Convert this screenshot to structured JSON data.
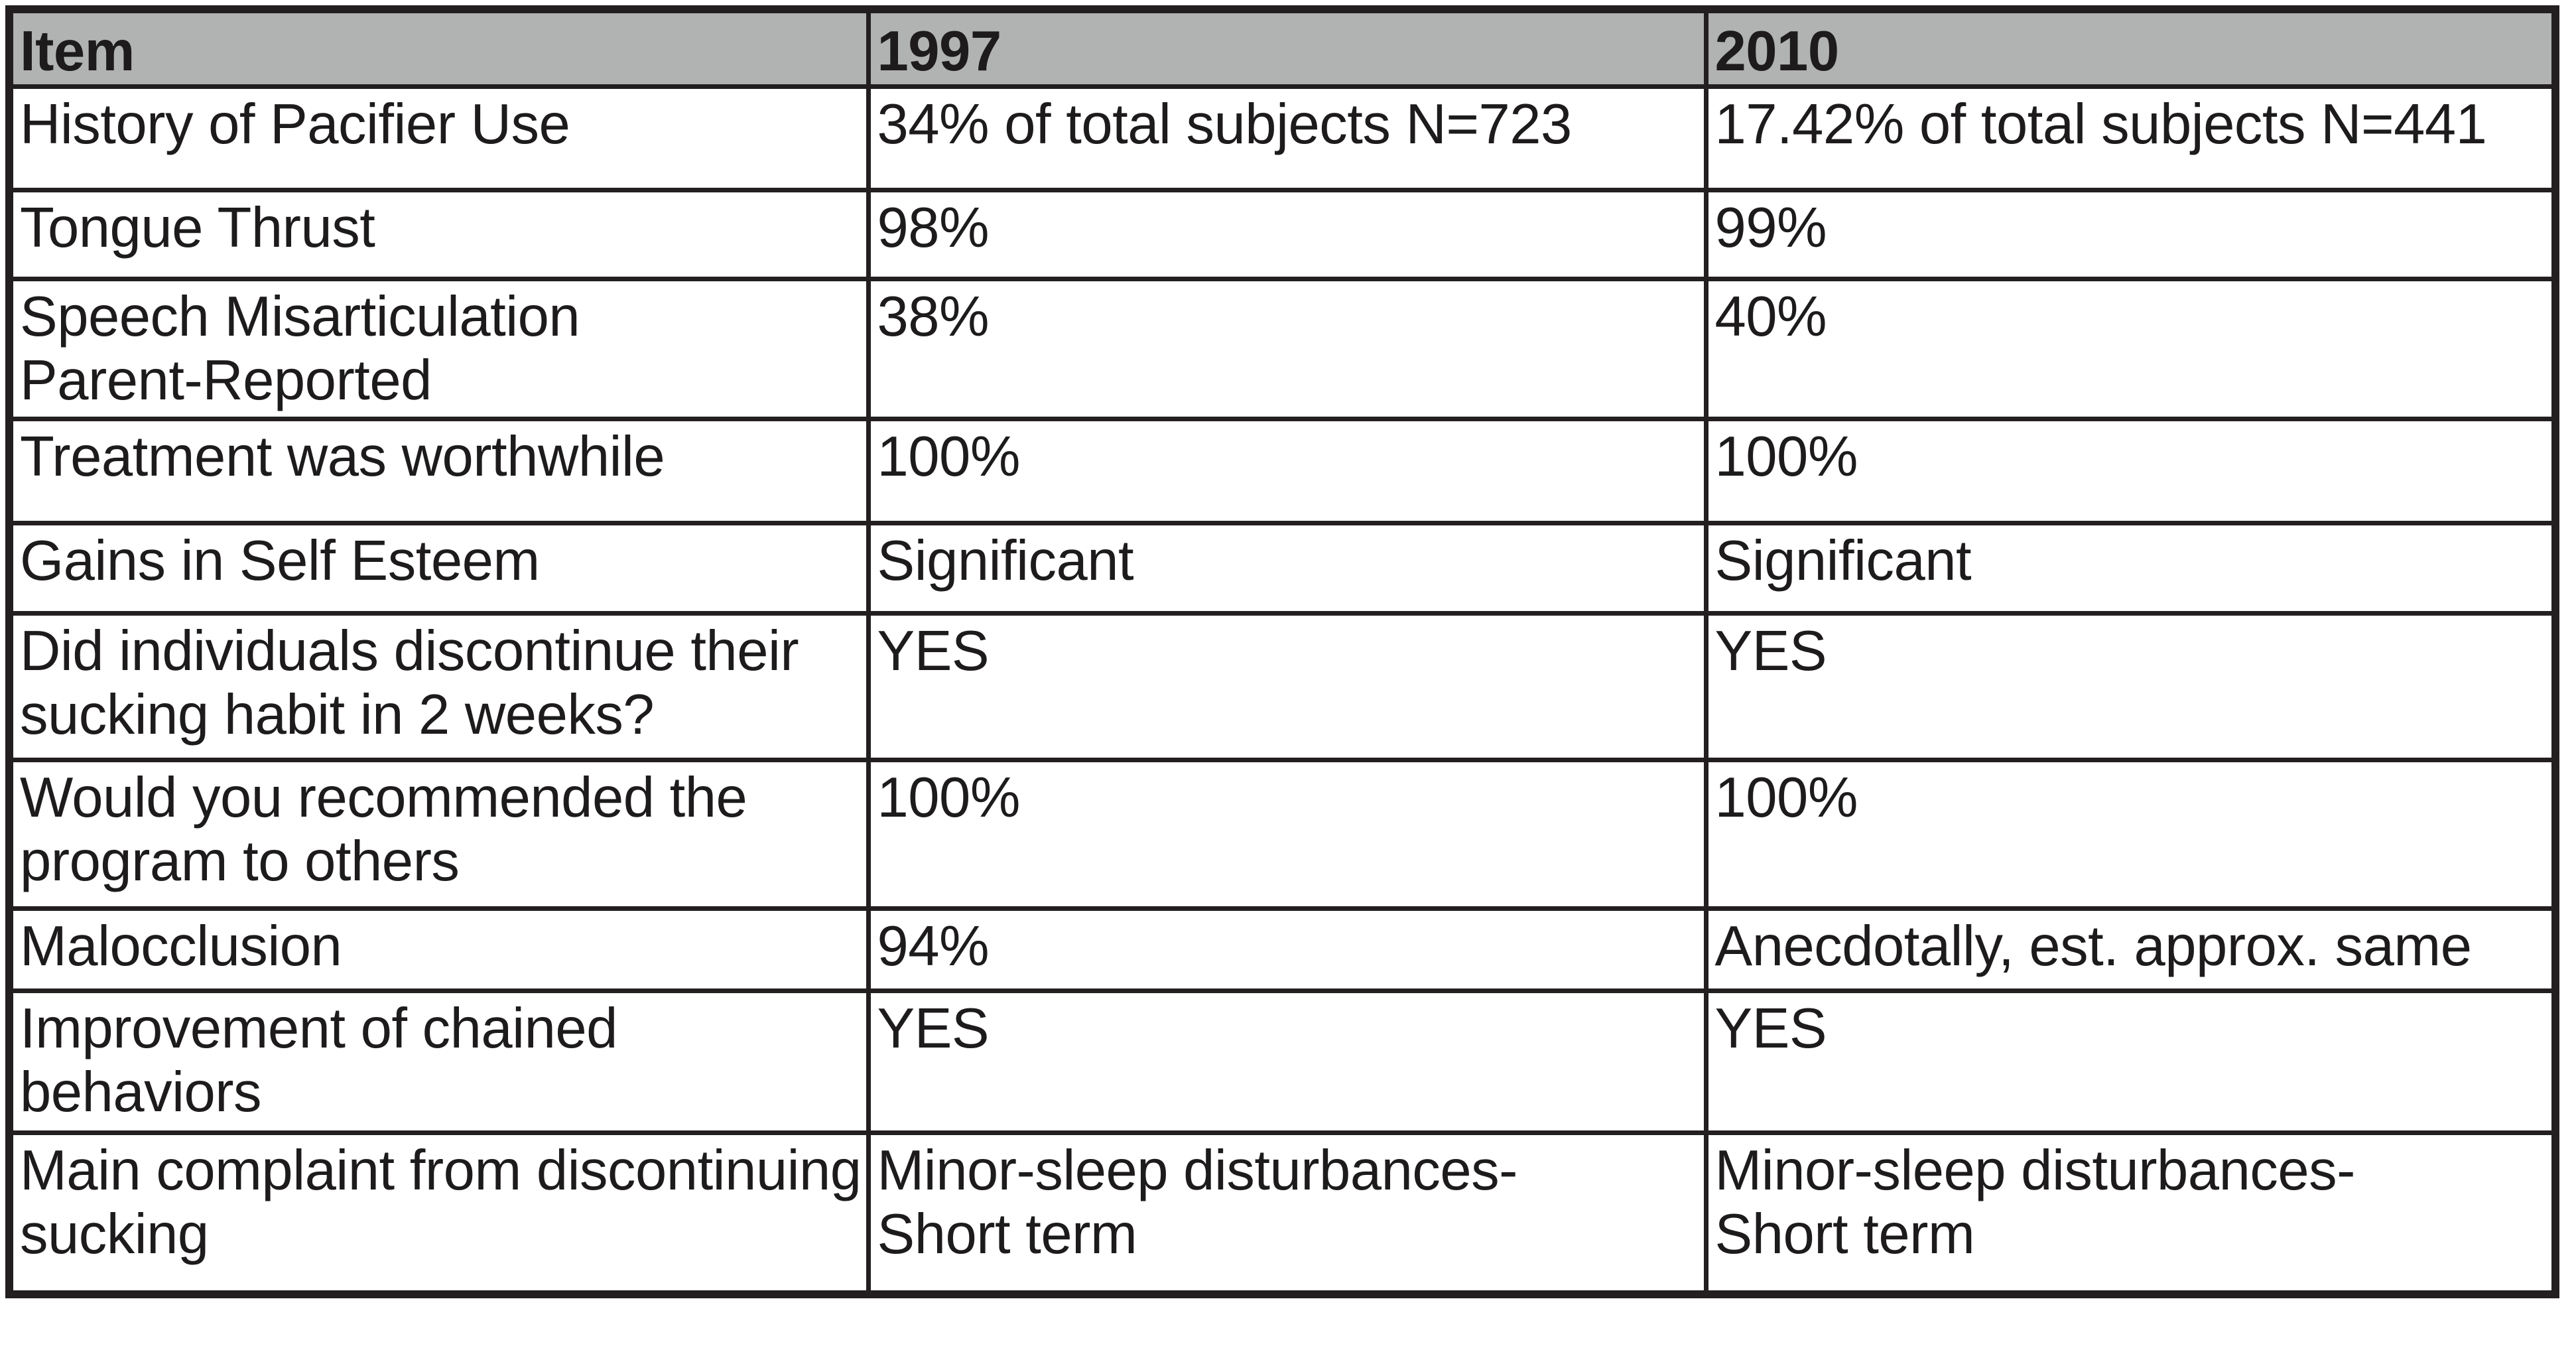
{
  "chart_data": {
    "type": "table",
    "columns": [
      "Item",
      "1997",
      "2010"
    ],
    "rows": [
      [
        "History of Pacifier Use",
        "34% of total subjects N=723",
        "17.42% of total subjects N=441"
      ],
      [
        "Tongue Thrust",
        "98%",
        "99%"
      ],
      [
        "Speech Misarticulation\nParent-Reported",
        "38%",
        "40%"
      ],
      [
        "Treatment was worthwhile",
        "100%",
        "100%"
      ],
      [
        "Gains in Self Esteem",
        "Significant",
        "Significant"
      ],
      [
        "Did individuals discontinue their\nsucking habit in 2 weeks?",
        "YES",
        "YES"
      ],
      [
        "Would you recommended the\nprogram to others",
        "100%",
        "100%"
      ],
      [
        "Malocclusion",
        "94%",
        "Anecdotally, est. approx. same"
      ],
      [
        "Improvement of chained\nbehaviors",
        "YES",
        "YES"
      ],
      [
        "Main complaint from discontinuing\nsucking",
        "Minor-sleep disturbances-\nShort term",
        "Minor-sleep disturbances-\nShort term"
      ]
    ]
  },
  "colors": {
    "header_background": "#b1b3b2",
    "border": "#231f20",
    "cell_background": "#ffffff",
    "text": "#1d1b1c"
  }
}
